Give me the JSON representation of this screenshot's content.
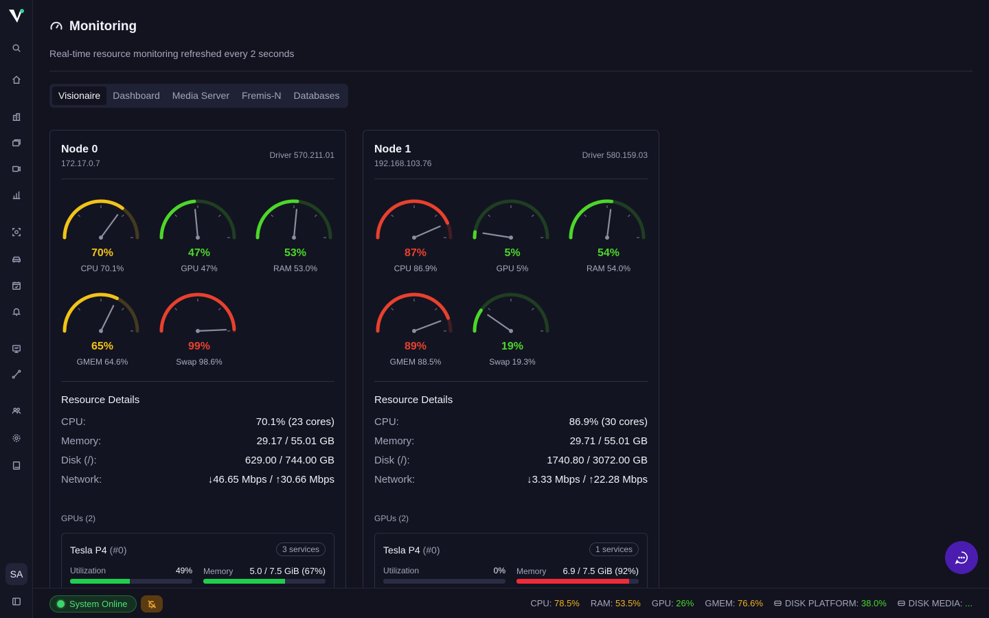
{
  "sidebar": {
    "avatar_initials": "SA",
    "icons": [
      "search-icon",
      "home-icon",
      "building-icon",
      "layers-icon",
      "video-icon",
      "chart-icon",
      "scan-icon",
      "car-icon",
      "calendar-icon",
      "bell-icon",
      "presentation-icon",
      "route-icon",
      "users-icon",
      "settings-icon",
      "book-icon",
      "panel-toggle-icon"
    ]
  },
  "header": {
    "title": "Monitoring",
    "subtitle": "Real-time resource monitoring refreshed every 2 seconds"
  },
  "tabs": [
    "Visionaire",
    "Dashboard",
    "Media Server",
    "Fremis-N",
    "Databases"
  ],
  "active_tab": "Visionaire",
  "nodes": [
    {
      "name": "Node 0",
      "ip": "172.17.0.7",
      "driver": "Driver 570.211.01",
      "gauges": [
        {
          "pct": "70%",
          "label": "CPU 70.1%",
          "value": 0.701,
          "color": "#f2c318"
        },
        {
          "pct": "47%",
          "label": "GPU 47%",
          "value": 0.47,
          "color": "#4cd72a"
        },
        {
          "pct": "53%",
          "label": "RAM 53.0%",
          "value": 0.53,
          "color": "#4cd72a"
        },
        {
          "pct": "65%",
          "label": "GMEM 64.6%",
          "value": 0.646,
          "color": "#f2c318"
        },
        {
          "pct": "99%",
          "label": "Swap 98.6%",
          "value": 0.986,
          "color": "#e8412e"
        }
      ],
      "resource_title": "Resource Details",
      "resources": [
        {
          "label": "CPU:",
          "value": "70.1% (23 cores)"
        },
        {
          "label": "Memory:",
          "value": "29.17 / 55.01 GB"
        },
        {
          "label": "Disk (/):",
          "value": "629.00 / 744.00 GB"
        },
        {
          "label": "Network:",
          "value": "↓46.65 Mbps / ↑30.66 Mbps"
        }
      ],
      "gpus_title": "GPUs (2)",
      "gpu": {
        "name": "Tesla P4",
        "id": "(#0)",
        "services": "3 services",
        "util_label": "Utilization",
        "util_value": "49%",
        "util_fraction": 0.49,
        "util_color": "#1fcf4f",
        "mem_label": "Memory",
        "mem_value": "5.0 / 7.5 GiB (67%)",
        "mem_fraction": 0.67,
        "mem_color": "#1fcf4f"
      }
    },
    {
      "name": "Node 1",
      "ip": "192.168.103.76",
      "driver": "Driver 580.159.03",
      "gauges": [
        {
          "pct": "87%",
          "label": "CPU 86.9%",
          "value": 0.869,
          "color": "#e8412e"
        },
        {
          "pct": "5%",
          "label": "GPU 5%",
          "value": 0.05,
          "color": "#4cd72a"
        },
        {
          "pct": "54%",
          "label": "RAM 54.0%",
          "value": 0.54,
          "color": "#4cd72a"
        },
        {
          "pct": "89%",
          "label": "GMEM 88.5%",
          "value": 0.885,
          "color": "#e8412e"
        },
        {
          "pct": "19%",
          "label": "Swap 19.3%",
          "value": 0.193,
          "color": "#4cd72a"
        }
      ],
      "resource_title": "Resource Details",
      "resources": [
        {
          "label": "CPU:",
          "value": "86.9% (30 cores)"
        },
        {
          "label": "Memory:",
          "value": "29.71 / 55.01 GB"
        },
        {
          "label": "Disk (/):",
          "value": "1740.80 / 3072.00 GB"
        },
        {
          "label": "Network:",
          "value": "↓3.33 Mbps / ↑22.28 Mbps"
        }
      ],
      "gpus_title": "GPUs (2)",
      "gpu": {
        "name": "Tesla P4",
        "id": "(#0)",
        "services": "1 services",
        "util_label": "Utilization",
        "util_value": "0%",
        "util_fraction": 0.0,
        "util_color": "#1fcf4f",
        "mem_label": "Memory",
        "mem_value": "6.9 / 7.5 GiB (92%)",
        "mem_fraction": 0.92,
        "mem_color": "#ef2b3a"
      }
    }
  ],
  "footer": {
    "status": "System Online",
    "stats": [
      {
        "label": "CPU:",
        "value": "78.5%",
        "color": "#f2b21e",
        "icon": ""
      },
      {
        "label": "RAM:",
        "value": "53.5%",
        "color": "#f2b21e",
        "icon": ""
      },
      {
        "label": "GPU:",
        "value": "26%",
        "color": "#4cd72a",
        "icon": ""
      },
      {
        "label": "GMEM:",
        "value": "76.6%",
        "color": "#f2b21e",
        "icon": ""
      },
      {
        "label": "DISK PLATFORM:",
        "value": "38.0%",
        "color": "#4cd72a",
        "icon": "disk-icon"
      },
      {
        "label": "DISK MEDIA:",
        "value": "...",
        "color": "#4cd72a",
        "icon": "disk-icon"
      }
    ]
  },
  "colors": {
    "accent": "#4a1db0",
    "green": "#4cd72a",
    "yellow": "#f2c318",
    "red": "#e8412e"
  }
}
